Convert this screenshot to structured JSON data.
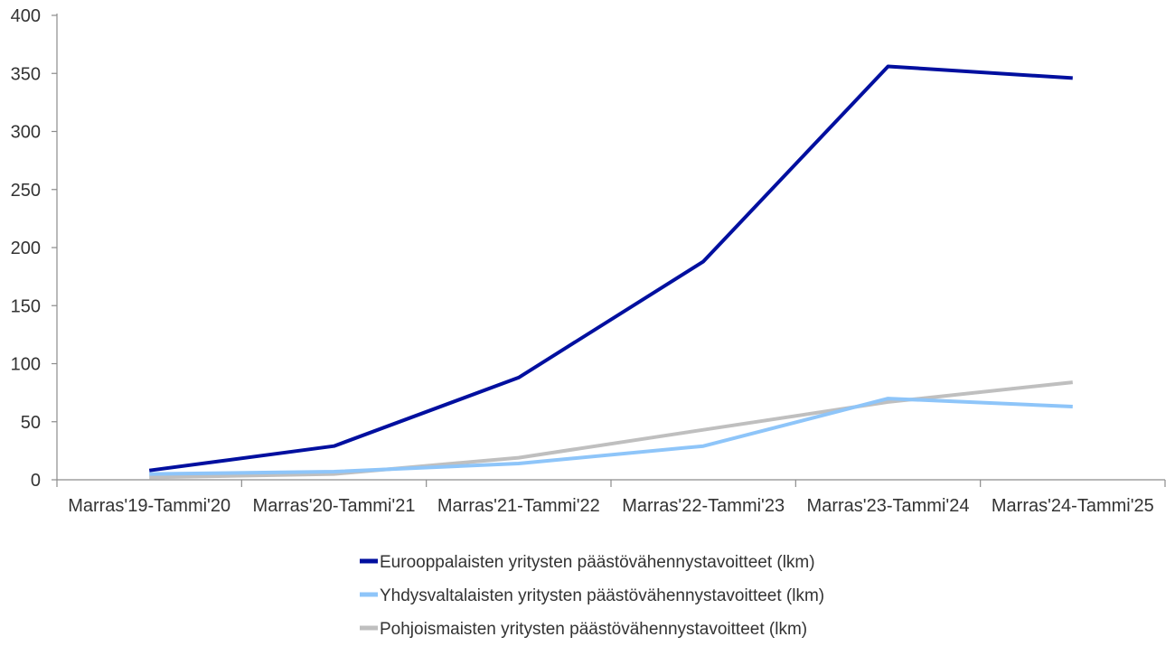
{
  "chart_data": {
    "type": "line",
    "title": "",
    "xlabel": "",
    "ylabel": "",
    "ylim": [
      0,
      400
    ],
    "yticks": [
      0,
      50,
      100,
      150,
      200,
      250,
      300,
      350,
      400
    ],
    "grid": false,
    "legend_position": "bottom",
    "categories": [
      "Marras'19-Tammi'20",
      "Marras'20-Tammi'21",
      "Marras'21-Tammi'22",
      "Marras'22-Tammi'23",
      "Marras'23-Tammi'24",
      "Marras'24-Tammi'25"
    ],
    "series": [
      {
        "name": "Eurooppalaisten yritysten päästövähennystavoitteet (lkm)",
        "color": "#000f9f",
        "values": [
          8,
          29,
          88,
          188,
          356,
          346
        ]
      },
      {
        "name": "Yhdysvaltalaisten yritysten päästövähennystavoitteet (lkm)",
        "color": "#8ec5f9",
        "values": [
          5,
          7,
          14,
          29,
          70,
          63
        ]
      },
      {
        "name": "Pohjoismaisten yritysten päästövähennystavoitteet (lkm)",
        "color": "#bfbfbf",
        "values": [
          2,
          5,
          19,
          43,
          67,
          84
        ]
      }
    ]
  }
}
